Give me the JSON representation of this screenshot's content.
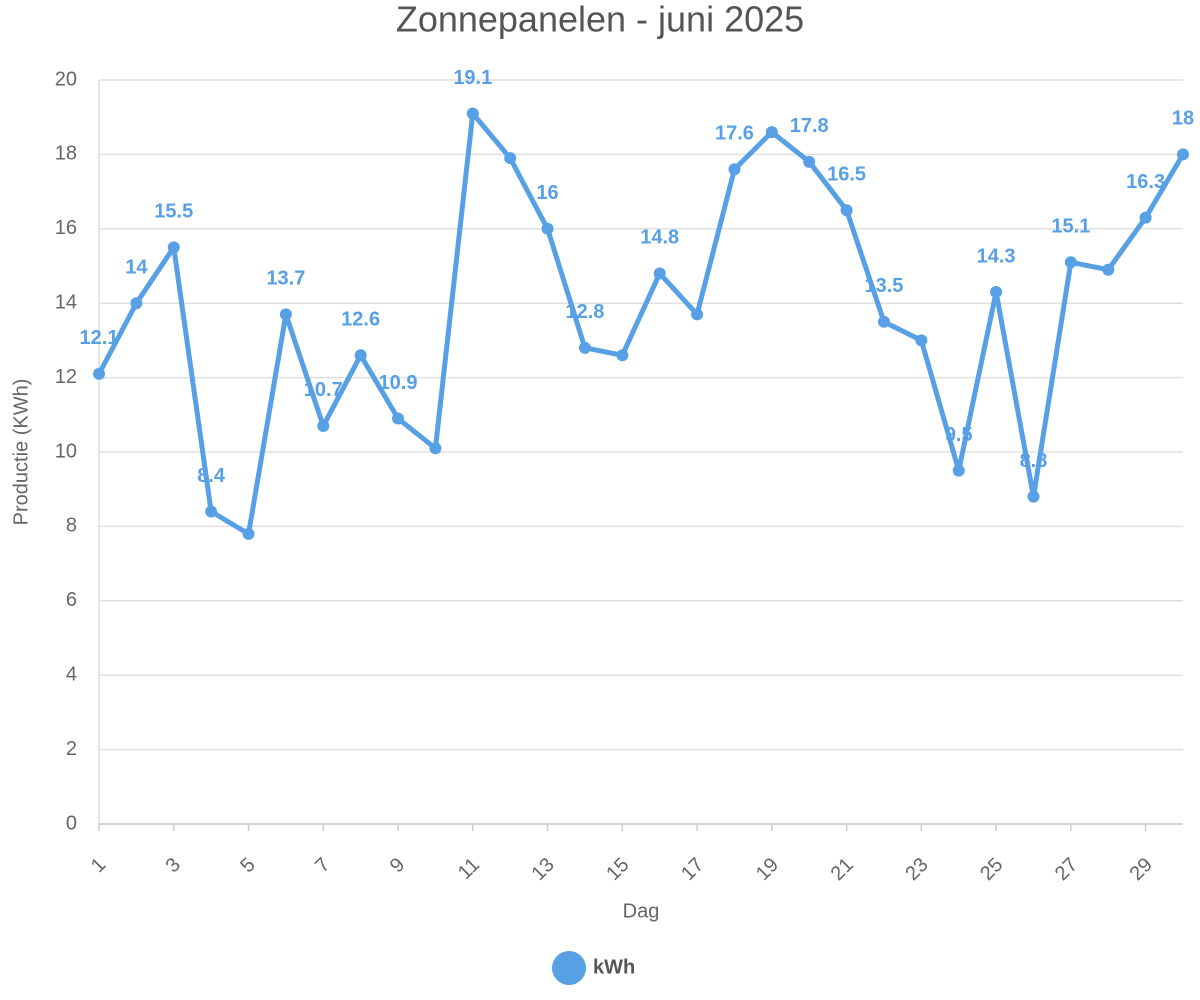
{
  "chart_data": {
    "type": "line",
    "title": "Zonnepanelen - juni 2025",
    "x_label": "Dag",
    "y_label": "Productie (KWh)",
    "x": [
      1,
      2,
      3,
      4,
      5,
      6,
      7,
      8,
      9,
      10,
      11,
      12,
      13,
      14,
      15,
      16,
      17,
      18,
      19,
      20,
      21,
      22,
      23,
      24,
      25,
      26,
      27,
      28,
      29,
      30
    ],
    "series": [
      {
        "name": "kWh",
        "color": "#57a0e5",
        "values": [
          12.1,
          14,
          15.5,
          8.4,
          7.8,
          13.7,
          10.7,
          12.6,
          10.9,
          10.1,
          19.1,
          17.9,
          16,
          12.8,
          12.6,
          14.8,
          13.7,
          17.6,
          18.6,
          17.8,
          16.5,
          13.5,
          13,
          9.5,
          14.3,
          8.8,
          15.1,
          14.9,
          16.3,
          18
        ],
        "value_labels": [
          "12.1",
          "14",
          "15.5",
          "8.4",
          null,
          "13.7",
          "10.7",
          "12.6",
          "10.9",
          null,
          "19.1",
          null,
          "16",
          "12.8",
          null,
          "14.8",
          null,
          "17.6",
          null,
          "17.8",
          "16.5",
          "13.5",
          null,
          "9.5",
          "14.3",
          "8.8",
          "15.1",
          null,
          "16.3",
          "18"
        ]
      }
    ],
    "xlim": [
      1,
      30
    ],
    "xticks": [
      1,
      3,
      5,
      7,
      9,
      11,
      13,
      15,
      17,
      19,
      21,
      23,
      25,
      27,
      29
    ],
    "ylim": [
      0,
      20
    ],
    "yticks": [
      0,
      2,
      4,
      6,
      8,
      10,
      12,
      14,
      16,
      18,
      20
    ],
    "grid": true,
    "legend": "bottom"
  }
}
